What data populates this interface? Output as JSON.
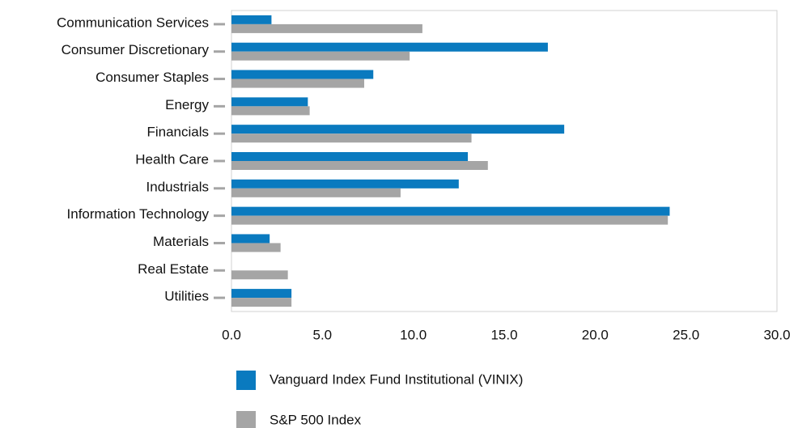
{
  "chart_data": {
    "type": "barh",
    "categories": [
      "Communication Services",
      "Consumer Discretionary",
      "Consumer Staples",
      "Energy",
      "Financials",
      "Health Care",
      "Industrials",
      "Information Technology",
      "Materials",
      "Real Estate",
      "Utilities"
    ],
    "series": [
      {
        "name": "Vanguard Index Fund Institutional (VINIX)",
        "color": "#0a7abf",
        "values": [
          2.2,
          17.4,
          7.8,
          4.2,
          18.3,
          13.0,
          12.5,
          24.1,
          2.1,
          0,
          3.3
        ]
      },
      {
        "name": "S&P 500 Index",
        "color": "#a5a5a5",
        "values": [
          10.5,
          9.8,
          7.3,
          4.3,
          13.2,
          14.1,
          9.3,
          24.0,
          2.7,
          3.1,
          3.3
        ]
      }
    ],
    "xlim": [
      0,
      30
    ],
    "xticks": [
      {
        "value": 0,
        "label": "0.0"
      },
      {
        "value": 5,
        "label": "5.0"
      },
      {
        "value": 10,
        "label": "10.0"
      },
      {
        "value": 15,
        "label": "15.0"
      },
      {
        "value": 20,
        "label": "20.0"
      },
      {
        "value": 25,
        "label": "25.0"
      },
      {
        "value": 30,
        "label": "30.0"
      }
    ],
    "grid": false
  }
}
